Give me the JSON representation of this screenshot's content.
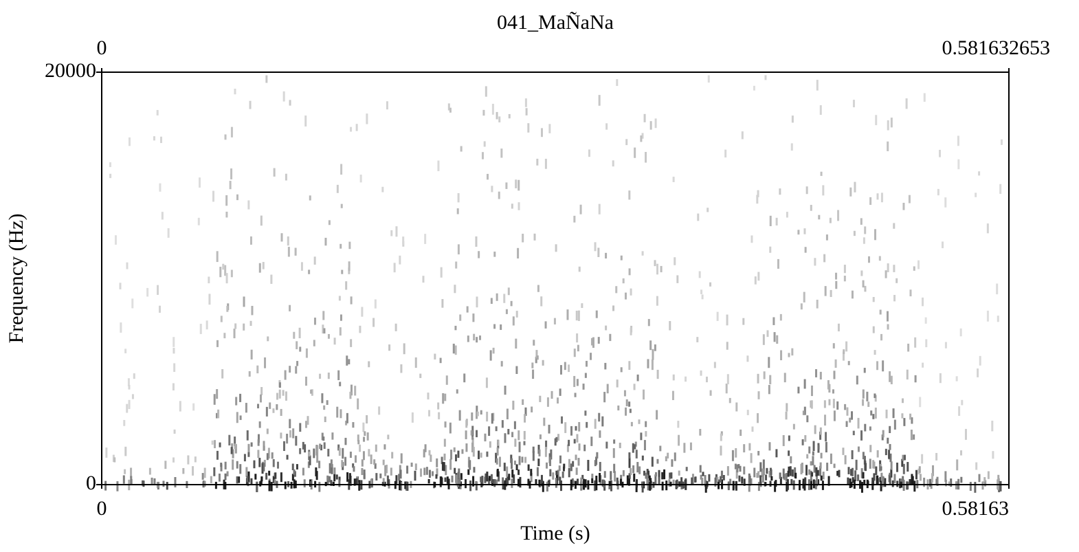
{
  "chart_data": {
    "type": "spectrogram",
    "title": "041_MaÑaNa",
    "xlabel": "Time (s)",
    "ylabel": "Frequency (Hz)",
    "xlim": [
      0,
      0.581632653
    ],
    "xticks": [
      0,
      {
        "value": 0.581632653,
        "label": "0.58163"
      }
    ],
    "x2ticks": [
      0,
      0.581632653
    ],
    "ylim": [
      0,
      20000
    ],
    "yticks": [
      0,
      20000
    ]
  }
}
